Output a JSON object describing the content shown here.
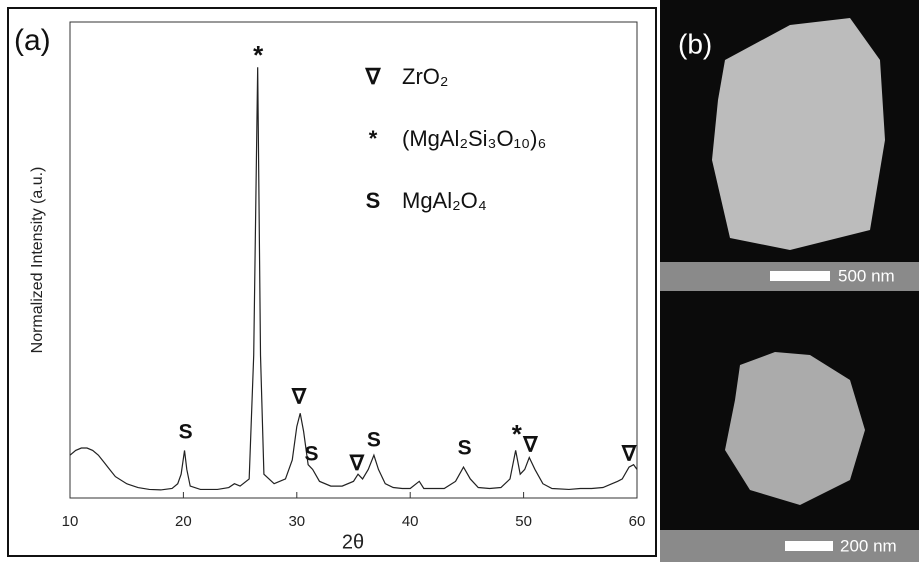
{
  "chart_data": {
    "type": "line",
    "panel_label": "(a)",
    "x_label": "2θ",
    "y_label": "Normalized Intensity (a.u.)",
    "xlim": [
      10,
      60
    ],
    "xticks": [
      10,
      20,
      30,
      40,
      50,
      60
    ],
    "ylim": [
      0,
      1
    ],
    "color": "#222222",
    "x": [
      10,
      10.5,
      11,
      11.5,
      12,
      12.5,
      13,
      13.5,
      14,
      15,
      16,
      17,
      18,
      19,
      19.5,
      19.8,
      20.1,
      20.3,
      20.6,
      21.5,
      23,
      24,
      24.5,
      25,
      25.8,
      26.2,
      26.55,
      26.8,
      27.1,
      28,
      29,
      29.6,
      30,
      30.3,
      30.6,
      31,
      31.4,
      32,
      33,
      34,
      35,
      35.4,
      35.8,
      36.3,
      36.8,
      37.2,
      37.8,
      38.5,
      39.3,
      40,
      40.8,
      41.2,
      42,
      43,
      44,
      44.7,
      45.3,
      46,
      47,
      48,
      48.8,
      49.3,
      49.7,
      50.1,
      50.5,
      51,
      51.7,
      52.5,
      54,
      55,
      56,
      57,
      57.8,
      58.3,
      58.7,
      59.3,
      59.7,
      60
    ],
    "values": [
      0.09,
      0.1,
      0.105,
      0.105,
      0.1,
      0.09,
      0.075,
      0.06,
      0.045,
      0.03,
      0.022,
      0.018,
      0.017,
      0.02,
      0.03,
      0.05,
      0.1,
      0.06,
      0.025,
      0.018,
      0.018,
      0.022,
      0.03,
      0.025,
      0.04,
      0.3,
      0.905,
      0.3,
      0.05,
      0.03,
      0.04,
      0.08,
      0.15,
      0.178,
      0.14,
      0.07,
      0.06,
      0.035,
      0.025,
      0.025,
      0.035,
      0.05,
      0.04,
      0.06,
      0.09,
      0.06,
      0.03,
      0.022,
      0.02,
      0.02,
      0.035,
      0.02,
      0.02,
      0.02,
      0.035,
      0.065,
      0.04,
      0.022,
      0.02,
      0.022,
      0.04,
      0.1,
      0.05,
      0.06,
      0.085,
      0.06,
      0.03,
      0.02,
      0.018,
      0.02,
      0.02,
      0.022,
      0.03,
      0.035,
      0.04,
      0.065,
      0.07,
      0.06
    ],
    "annotations": [
      {
        "text": "S",
        "x": 20.2,
        "y": 0.137
      },
      {
        "text": "*",
        "x": 26.6,
        "y": 0.926
      },
      {
        "text": "∇",
        "x": 30.2,
        "y": 0.21
      },
      {
        "text": "S",
        "x": 31.3,
        "y": 0.09
      },
      {
        "text": "∇",
        "x": 35.3,
        "y": 0.071
      },
      {
        "text": "S",
        "x": 36.8,
        "y": 0.12
      },
      {
        "text": "S",
        "x": 44.8,
        "y": 0.103
      },
      {
        "text": "*",
        "x": 49.4,
        "y": 0.13
      },
      {
        "text": "∇",
        "x": 50.6,
        "y": 0.109
      },
      {
        "text": "∇",
        "x": 59.3,
        "y": 0.09
      }
    ],
    "legend": [
      {
        "symbol": "∇",
        "label": "ZrO₂"
      },
      {
        "symbol": "*",
        "label": "(MgAl₂Si₃O₁₀)₆"
      },
      {
        "symbol": "S",
        "label": "MgAl₂O₄"
      }
    ]
  },
  "images": {
    "panel_label": "(b)",
    "scale_bars": [
      "500 nm",
      "200 nm"
    ]
  }
}
